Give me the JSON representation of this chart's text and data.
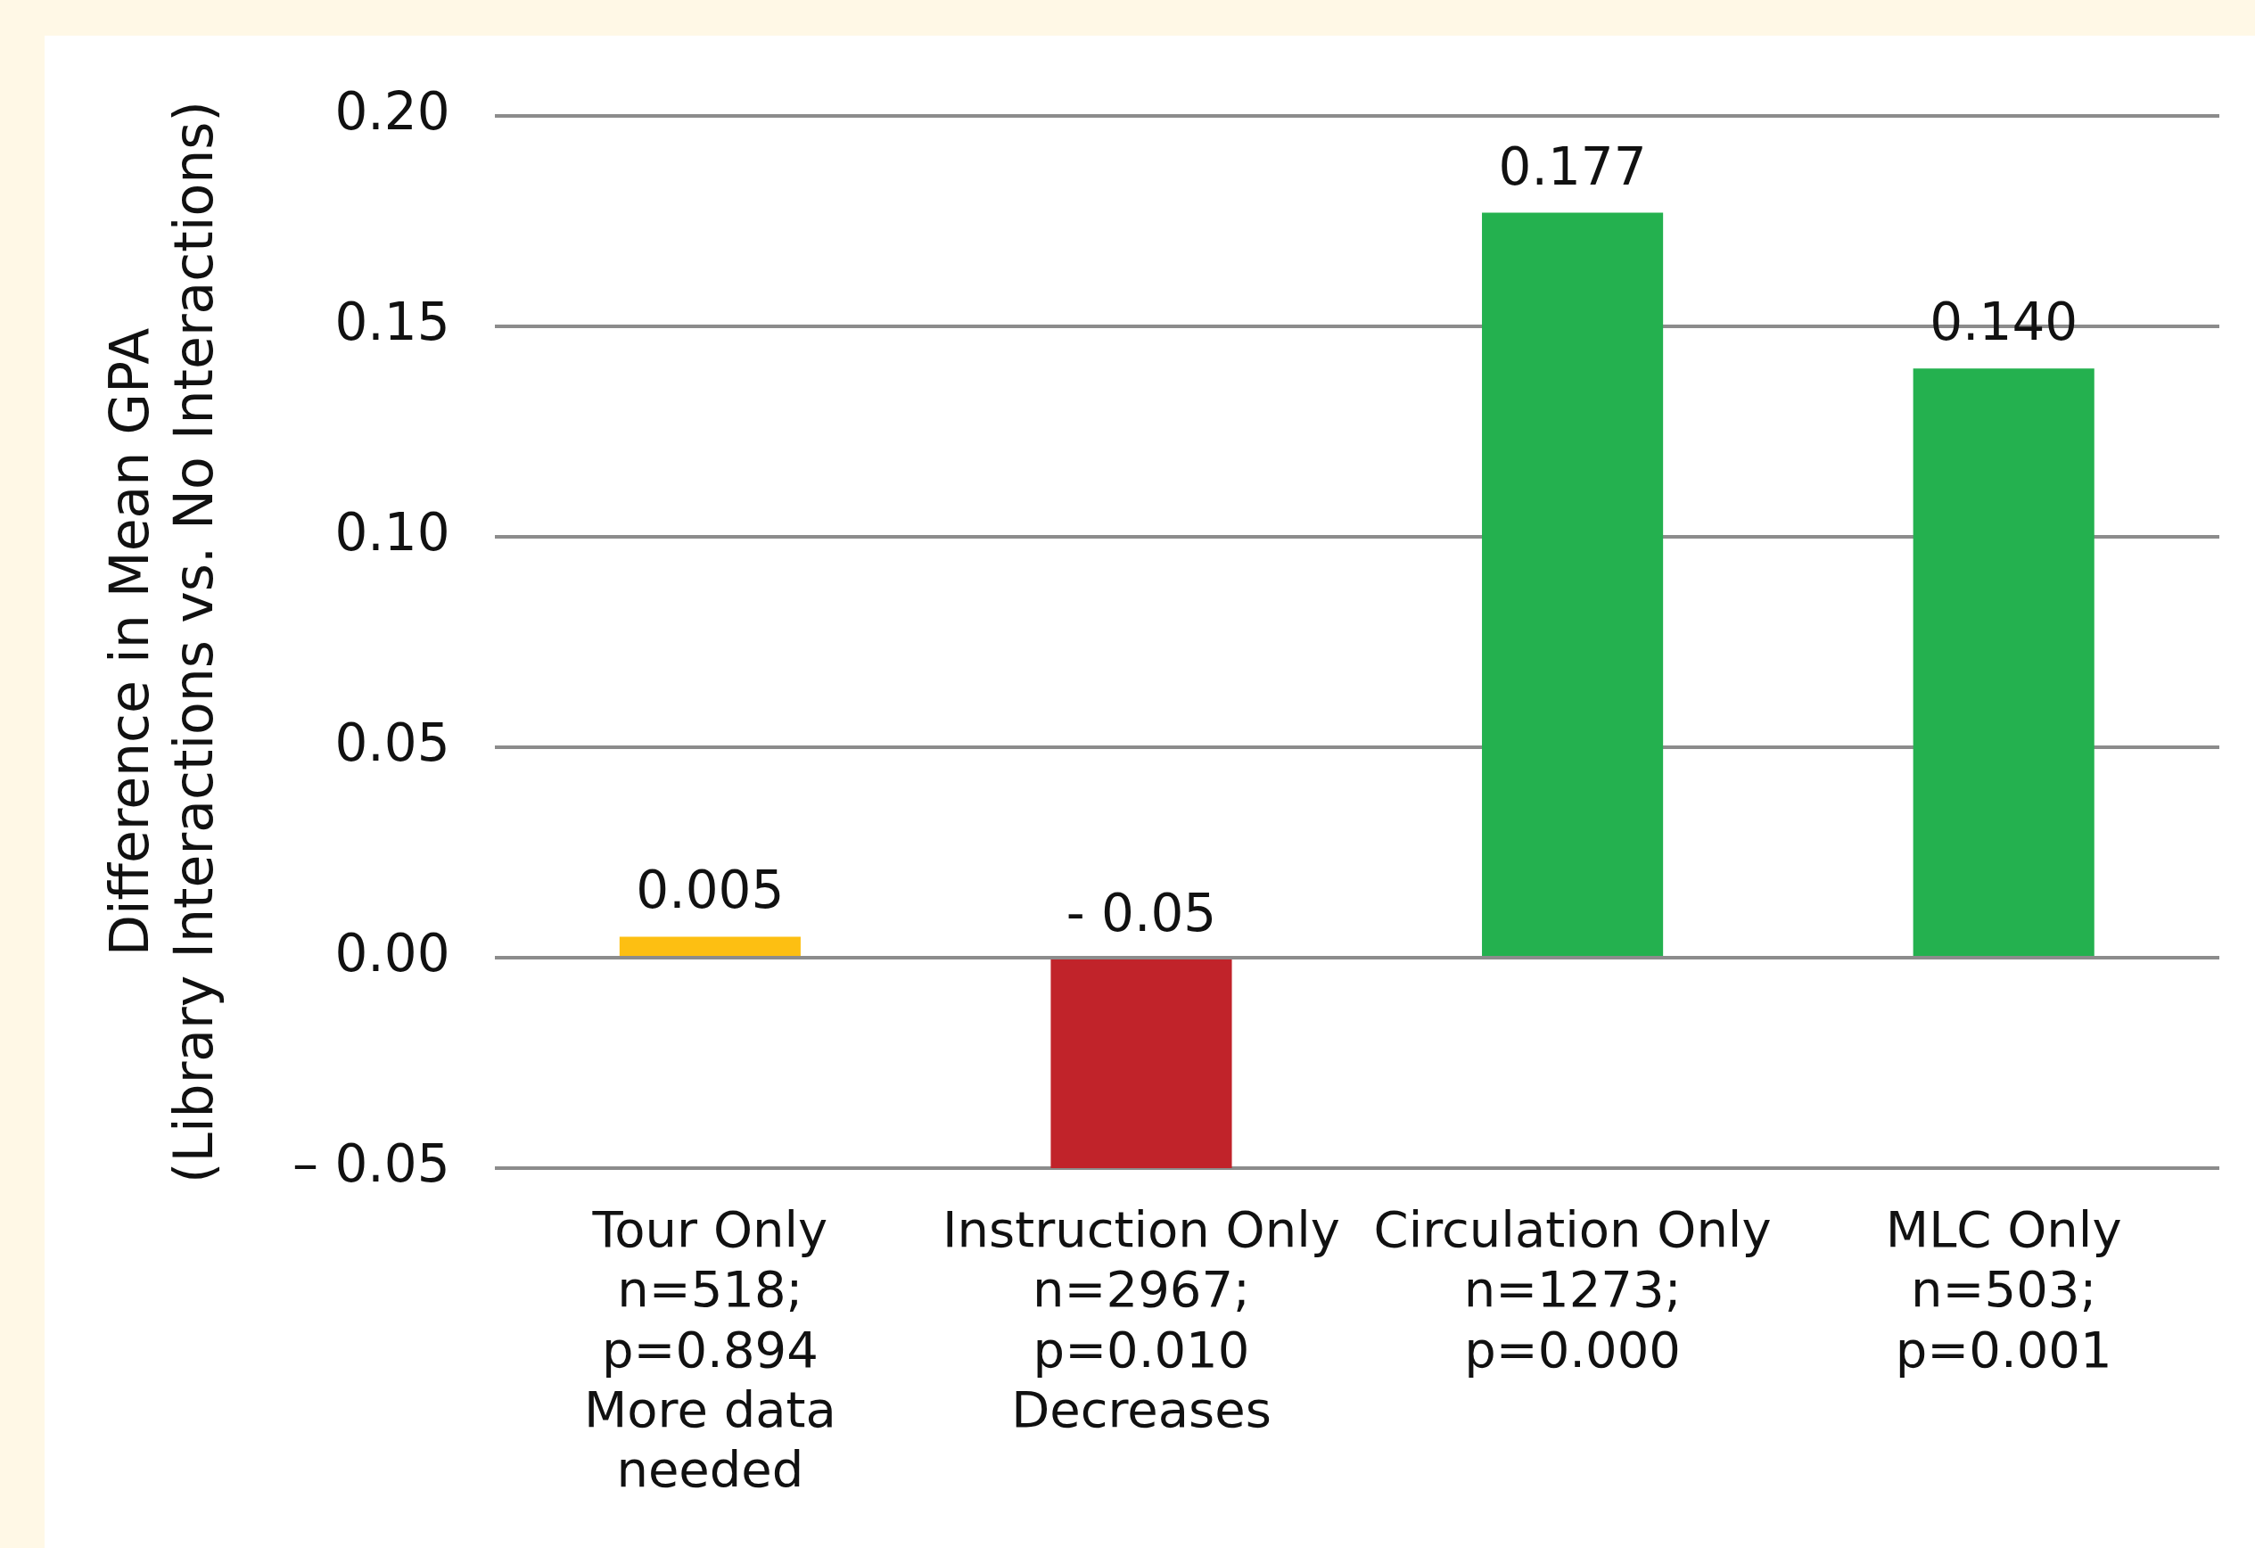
{
  "chart_data": {
    "type": "bar",
    "ylabel": "Difference in Mean GPA\n(Library Interactions vs. No Interactions)",
    "categories": [
      "Tour Only\nn=518;\np=0.894\nMore data\nneeded",
      "Instruction Only\nn=2967;\np=0.010\nDecreases",
      "Circulation Only\nn=1273;\np=0.000",
      "MLC Only\nn=503;\np=0.001"
    ],
    "values": [
      0.005,
      -0.05,
      0.177,
      0.14
    ],
    "colors": [
      "#fdbf12",
      "#c1232a",
      "#24b14f",
      "#24b14f"
    ],
    "value_labels": [
      "0.005",
      "- 0.05",
      "0.177",
      "0.140"
    ],
    "ylim": [
      -0.05,
      0.2
    ],
    "yticks": [
      {
        "value": -0.05,
        "label": "– 0.05"
      },
      {
        "value": 0,
        "label": "0.00"
      },
      {
        "value": 0.05,
        "label": "0.05"
      },
      {
        "value": 0.1,
        "label": "0.10"
      },
      {
        "value": 0.15,
        "label": "0.15"
      },
      {
        "value": 0.2,
        "label": "0.20"
      }
    ],
    "grid": "y",
    "legend": false
  }
}
